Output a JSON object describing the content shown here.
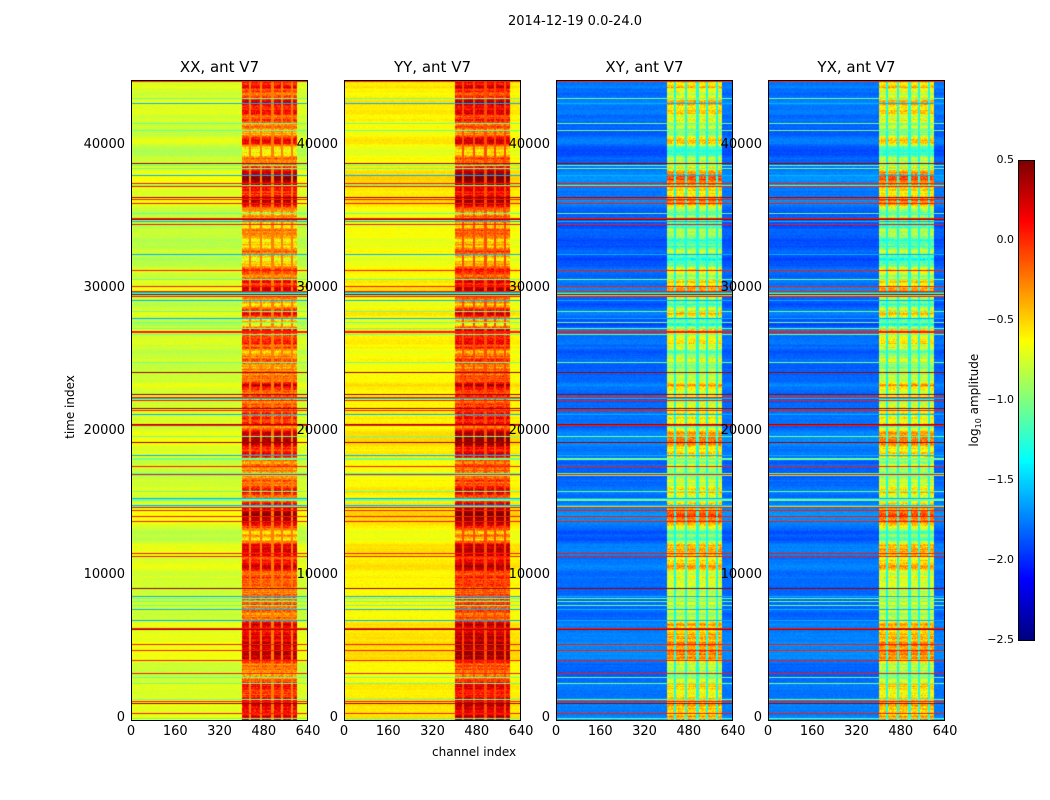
{
  "suptitle": "2014-12-19 0.0-24.0",
  "xlabel": "channel index",
  "ylabel": "time index",
  "chart_data": [
    {
      "type": "heatmap",
      "title": "XX, ant V7",
      "base_level": -0.75,
      "rfi_level": -0.1,
      "xlim": [
        0,
        640
      ],
      "ylim": [
        0,
        44640
      ],
      "xticks": [
        "0",
        "160",
        "320",
        "480",
        "640"
      ],
      "yticks": [
        "0",
        "10000",
        "20000",
        "30000",
        "40000"
      ]
    },
    {
      "type": "heatmap",
      "title": "YY, ant V7",
      "base_level": -0.6,
      "rfi_level": 0.0,
      "xlim": [
        0,
        640
      ],
      "ylim": [
        0,
        44640
      ],
      "xticks": [
        "0",
        "160",
        "320",
        "480",
        "640"
      ],
      "yticks": [
        "0",
        "10000",
        "20000",
        "30000",
        "40000"
      ]
    },
    {
      "type": "heatmap",
      "title": "XY, ant V7",
      "base_level": -1.8,
      "rfi_level": -0.7,
      "xlim": [
        0,
        640
      ],
      "ylim": [
        0,
        44640
      ],
      "xticks": [
        "0",
        "160",
        "320",
        "480",
        "640"
      ],
      "yticks": [
        "0",
        "10000",
        "20000",
        "30000",
        "40000"
      ]
    },
    {
      "type": "heatmap",
      "title": "YX, ant V7",
      "base_level": -1.8,
      "rfi_level": -0.7,
      "xlim": [
        0,
        640
      ],
      "ylim": [
        0,
        44640
      ],
      "xticks": [
        "0",
        "160",
        "320",
        "480",
        "640"
      ],
      "yticks": [
        "0",
        "10000",
        "20000",
        "30000",
        "40000"
      ]
    }
  ],
  "colorbar": {
    "label_main": "log",
    "label_sub": "10",
    "label_rest": " amplitude",
    "range": [
      -2.5,
      0.5
    ],
    "ticks": [
      "0.5",
      "0.0",
      "−0.5",
      "−1.0",
      "−1.5",
      "−2.0",
      "−2.5"
    ]
  }
}
